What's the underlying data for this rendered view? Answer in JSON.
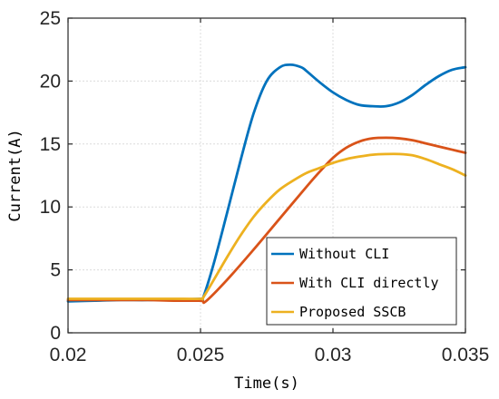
{
  "chart_data": {
    "type": "line",
    "xlabel": "Time(s)",
    "ylabel": "Current(A)",
    "xlim": [
      0.02,
      0.035
    ],
    "ylim": [
      0,
      25
    ],
    "xticks": [
      0.02,
      0.025,
      0.03,
      0.035
    ],
    "xtick_labels": [
      "0.02",
      "0.025",
      "0.03",
      "0.035"
    ],
    "yticks": [
      0,
      5,
      10,
      15,
      20,
      25
    ],
    "ytick_labels": [
      "0",
      "5",
      "10",
      "15",
      "20",
      "25"
    ],
    "grid": true,
    "legend_position": "bottom-right",
    "series": [
      {
        "name": "Without CLI",
        "color": "#0072BD",
        "x": [
          0.02,
          0.021,
          0.022,
          0.023,
          0.024,
          0.025,
          0.0251,
          0.0255,
          0.026,
          0.0265,
          0.027,
          0.0275,
          0.028,
          0.0284,
          0.0288,
          0.029,
          0.0295,
          0.03,
          0.0305,
          0.031,
          0.0315,
          0.032,
          0.0325,
          0.033,
          0.0335,
          0.034,
          0.0345,
          0.035
        ],
        "y": [
          2.5,
          2.55,
          2.6,
          2.6,
          2.65,
          2.7,
          2.8,
          5.5,
          9.5,
          13.6,
          17.4,
          20.0,
          21.1,
          21.3,
          21.1,
          20.8,
          19.9,
          19.1,
          18.5,
          18.1,
          18.0,
          18.0,
          18.3,
          18.9,
          19.7,
          20.4,
          20.9,
          21.1
        ]
      },
      {
        "name": "With CLI directly",
        "color": "#D95319",
        "x": [
          0.02,
          0.021,
          0.022,
          0.023,
          0.024,
          0.025,
          0.0252,
          0.026,
          0.027,
          0.028,
          0.029,
          0.0295,
          0.03,
          0.0305,
          0.031,
          0.0315,
          0.032,
          0.0325,
          0.033,
          0.0335,
          0.034,
          0.0345,
          0.035
        ],
        "y": [
          2.6,
          2.6,
          2.6,
          2.6,
          2.55,
          2.55,
          2.5,
          4.2,
          6.6,
          9.1,
          11.6,
          12.8,
          13.9,
          14.7,
          15.2,
          15.45,
          15.5,
          15.45,
          15.3,
          15.05,
          14.8,
          14.55,
          14.3
        ]
      },
      {
        "name": "Proposed SSCB",
        "color": "#EDB120",
        "x": [
          0.02,
          0.021,
          0.022,
          0.023,
          0.024,
          0.025,
          0.0251,
          0.0255,
          0.026,
          0.0265,
          0.027,
          0.0275,
          0.028,
          0.0285,
          0.029,
          0.0295,
          0.03,
          0.0305,
          0.031,
          0.0315,
          0.032,
          0.0325,
          0.033,
          0.0335,
          0.034,
          0.0345,
          0.035
        ],
        "y": [
          2.7,
          2.7,
          2.7,
          2.7,
          2.7,
          2.7,
          2.8,
          4.2,
          6.0,
          7.7,
          9.2,
          10.4,
          11.4,
          12.1,
          12.7,
          13.1,
          13.5,
          13.8,
          14.0,
          14.15,
          14.2,
          14.2,
          14.1,
          13.8,
          13.4,
          13.0,
          12.5
        ]
      }
    ]
  }
}
